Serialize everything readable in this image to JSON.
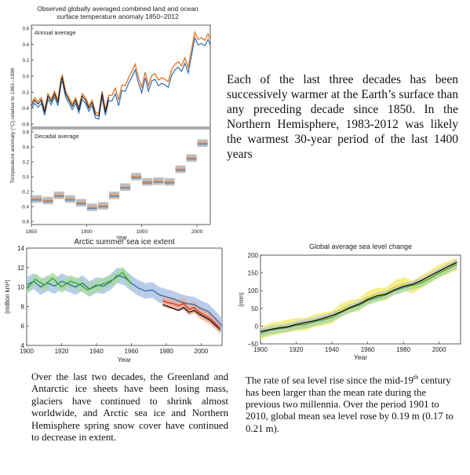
{
  "texts": {
    "para_top": "Each of the last three decades has been successively warmer at the Earth’s surface than any preceding decade since 1850. In the Northern Hemisphere, 1983-2012 was likely the warmest 30-year period of the last 1400 years",
    "para_left": "Over the last two decades, the Greenland and Antarctic ice sheets have been losing mass, glaciers have continued to shrink almost worldwide, and Arctic sea ice and Northern Hemisphere spring snow cover have continued to decrease in extent.",
    "para_right_a": "The rate of sea level rise since the mid-19",
    "para_right_sup": "th",
    "para_right_b": " century has been larger than the mean rate during the previous two millennia. Over the period 1901 to 2010, global mean sea level rose by 0.19 m (0.17 to 0.21 m)."
  },
  "colors": {
    "orange": "#e07a2e",
    "blue": "#2f6fb6",
    "black": "#111111",
    "green": "#3aa335",
    "red": "#c8331d",
    "yellow": "#e8d61c",
    "gray_band": "#bdbdbd",
    "blue_band": "#a9c0e2",
    "green_band": "#a8dba0",
    "red_band": "#f2a78f"
  },
  "chart_data": [
    {
      "type": "line",
      "title": "Observed globally averaged combined land and ocean surface temperature anomaly 1850–2012",
      "ylabel": "Temperature anomaly (°C) relative to 1961–1990",
      "xlabel": "Year",
      "panels": [
        {
          "label": "Annual average",
          "xlim": [
            1850,
            2012
          ],
          "ylim": [
            -0.6,
            0.6
          ],
          "yticks": [
            0.6,
            0.4,
            0.2,
            0.0,
            -0.2,
            -0.4,
            -0.6
          ],
          "series": [
            {
              "name": "annual",
              "color": "black",
              "x": [
                1850,
                1853,
                1856,
                1859,
                1862,
                1865,
                1868,
                1871,
                1874,
                1877,
                1878,
                1881,
                1884,
                1887,
                1890,
                1893,
                1896,
                1899,
                1902,
                1905,
                1908,
                1911,
                1914,
                1917,
                1920,
                1923,
                1926,
                1929,
                1932,
                1935,
                1938,
                1941,
                1944,
                1947,
                1950,
                1953,
                1956,
                1959,
                1962,
                1965,
                1968,
                1971,
                1974,
                1977,
                1980,
                1983,
                1986,
                1989,
                1992,
                1995,
                1998,
                2001,
                2004,
                2007,
                2010,
                2012
              ],
              "y": [
                -0.37,
                -0.3,
                -0.35,
                -0.3,
                -0.45,
                -0.25,
                -0.32,
                -0.22,
                -0.33,
                -0.05,
                -0.02,
                -0.22,
                -0.3,
                -0.38,
                -0.3,
                -0.42,
                -0.25,
                -0.3,
                -0.4,
                -0.33,
                -0.48,
                -0.5,
                -0.22,
                -0.45,
                -0.27,
                -0.27,
                -0.18,
                -0.33,
                -0.14,
                -0.15,
                -0.05,
                0.03,
                0.12,
                -0.05,
                -0.17,
                0.02,
                -0.15,
                -0.02,
                0.0,
                -0.08,
                -0.05,
                -0.07,
                -0.1,
                0.05,
                0.12,
                0.15,
                0.1,
                0.2,
                0.08,
                0.3,
                0.52,
                0.43,
                0.45,
                0.42,
                0.5,
                0.43
              ]
            }
          ]
        },
        {
          "label": "Decadal average",
          "xlim": [
            1850,
            2012
          ],
          "ylim": [
            -0.6,
            0.6
          ],
          "yticks": [
            0.6,
            0.4,
            0.2,
            0.0,
            -0.2,
            -0.4,
            -0.6
          ],
          "decades": [
            {
              "x0": 1850,
              "x1": 1860,
              "y": -0.3
            },
            {
              "x0": 1860,
              "x1": 1870,
              "y": -0.32
            },
            {
              "x0": 1870,
              "x1": 1880,
              "y": -0.25
            },
            {
              "x0": 1880,
              "x1": 1890,
              "y": -0.3
            },
            {
              "x0": 1890,
              "x1": 1900,
              "y": -0.35
            },
            {
              "x0": 1900,
              "x1": 1910,
              "y": -0.41
            },
            {
              "x0": 1910,
              "x1": 1920,
              "y": -0.39
            },
            {
              "x0": 1920,
              "x1": 1930,
              "y": -0.25
            },
            {
              "x0": 1930,
              "x1": 1940,
              "y": -0.14
            },
            {
              "x0": 1940,
              "x1": 1950,
              "y": 0.0
            },
            {
              "x0": 1950,
              "x1": 1960,
              "y": -0.07
            },
            {
              "x0": 1960,
              "x1": 1970,
              "y": -0.06
            },
            {
              "x0": 1970,
              "x1": 1980,
              "y": -0.07
            },
            {
              "x0": 1980,
              "x1": 1990,
              "y": 0.1
            },
            {
              "x0": 1990,
              "x1": 2000,
              "y": 0.25
            },
            {
              "x0": 2000,
              "x1": 2010,
              "y": 0.45
            }
          ]
        }
      ],
      "xticks": [
        1850,
        1900,
        1950,
        2000
      ]
    },
    {
      "type": "line",
      "title": "Arctic summer sea ice extent",
      "ylabel": "(million km²)",
      "xlabel": "Year",
      "xlim": [
        1900,
        2012
      ],
      "ylim": [
        4,
        14
      ],
      "xticks": [
        1900,
        1920,
        1940,
        1960,
        1980,
        2000
      ],
      "yticks": [
        4,
        6,
        8,
        10,
        12,
        14
      ],
      "series": [
        {
          "name": "blue",
          "color": "blue",
          "band": "blue_band",
          "x": [
            1900,
            1904,
            1908,
            1912,
            1916,
            1920,
            1924,
            1928,
            1932,
            1936,
            1940,
            1944,
            1948,
            1952,
            1956,
            1960,
            1964,
            1968,
            1972,
            1976,
            1980,
            1984,
            1988,
            1992,
            1996,
            2000,
            2004,
            2008,
            2012
          ],
          "y": [
            10.2,
            10.6,
            10.0,
            10.4,
            10.1,
            10.6,
            10.3,
            10.0,
            10.4,
            9.8,
            10.2,
            10.1,
            10.5,
            11.2,
            11.0,
            10.4,
            9.9,
            9.6,
            9.7,
            9.2,
            9.0,
            8.8,
            8.5,
            8.3,
            8.2,
            7.8,
            7.5,
            6.8,
            6.0
          ]
        },
        {
          "name": "green",
          "color": "green",
          "band": "green_band",
          "x": [
            1900,
            1905,
            1910,
            1915,
            1920,
            1925,
            1930,
            1935,
            1940,
            1945,
            1950,
            1955,
            1960
          ],
          "y": [
            9.8,
            10.8,
            10.2,
            10.9,
            10.0,
            10.6,
            10.3,
            9.7,
            10.1,
            10.4,
            10.8,
            11.5,
            10.3
          ]
        },
        {
          "name": "red",
          "color": "red",
          "band": "red_band",
          "x": [
            1978,
            1981,
            1984,
            1987,
            1990,
            1993,
            1996,
            1999,
            2002,
            2005,
            2008,
            2011
          ],
          "y": [
            8.6,
            8.4,
            8.3,
            8.1,
            8.3,
            7.7,
            7.9,
            7.4,
            7.1,
            6.8,
            6.3,
            5.8
          ]
        },
        {
          "name": "black",
          "color": "black",
          "x": [
            1978,
            1981,
            1984,
            1987,
            1990,
            1993,
            1996,
            1999,
            2002,
            2005,
            2008,
            2011
          ],
          "y": [
            8.2,
            8.0,
            7.8,
            7.6,
            7.9,
            7.4,
            7.6,
            7.2,
            6.9,
            6.6,
            6.1,
            5.6
          ]
        }
      ]
    },
    {
      "type": "line",
      "title": "Global average sea level change",
      "ylabel": "(mm)",
      "xlabel": "Year",
      "xlim": [
        1900,
        2012
      ],
      "ylim": [
        -50,
        200
      ],
      "xticks": [
        1900,
        1920,
        1940,
        1960,
        1980,
        2000
      ],
      "yticks": [
        200,
        150,
        100,
        50,
        0,
        -50
      ],
      "series": [
        {
          "name": "yellow",
          "color": "yellow",
          "x": [
            1900,
            1905,
            1910,
            1915,
            1920,
            1925,
            1930,
            1935,
            1940,
            1945,
            1950,
            1955,
            1960,
            1965,
            1970,
            1975,
            1980,
            1985,
            1990,
            1995,
            2000,
            2005,
            2010
          ],
          "y": [
            -20,
            -10,
            -5,
            0,
            5,
            5,
            15,
            20,
            25,
            45,
            55,
            60,
            80,
            90,
            90,
            110,
            120,
            110,
            125,
            140,
            155,
            165,
            175
          ]
        },
        {
          "name": "green",
          "color": "green",
          "x": [
            1900,
            1905,
            1910,
            1915,
            1920,
            1925,
            1930,
            1935,
            1940,
            1945,
            1950,
            1955,
            1960,
            1965,
            1970,
            1975,
            1980,
            1985,
            1990,
            1995,
            2000,
            2005,
            2010
          ],
          "y": [
            -20,
            -12,
            -8,
            -4,
            2,
            5,
            12,
            18,
            25,
            38,
            50,
            58,
            72,
            80,
            88,
            100,
            108,
            115,
            122,
            135,
            150,
            162,
            175
          ]
        },
        {
          "name": "gray",
          "color": "black",
          "x": [
            1900,
            1905,
            1910,
            1915,
            1920,
            1925,
            1930,
            1935,
            1940,
            1945,
            1950,
            1955,
            1960,
            1965,
            1970,
            1975,
            1980,
            1985,
            1990,
            1995,
            2000,
            2005,
            2010
          ],
          "y": [
            -15,
            -10,
            -5,
            -2,
            5,
            10,
            15,
            22,
            30,
            40,
            52,
            62,
            75,
            85,
            90,
            102,
            112,
            118,
            128,
            142,
            155,
            168,
            180
          ]
        }
      ]
    }
  ]
}
